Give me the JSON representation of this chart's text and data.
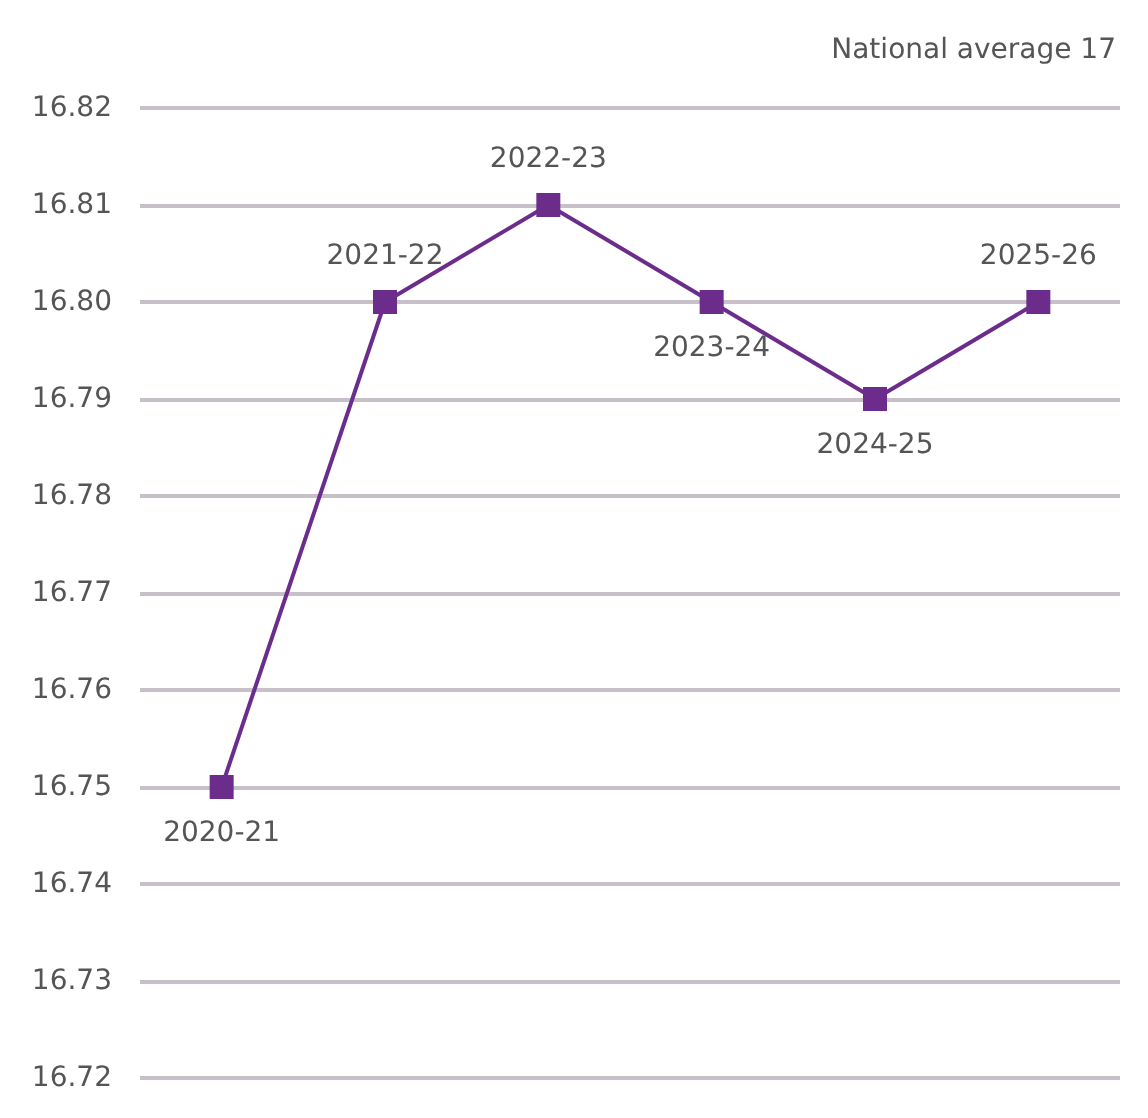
{
  "chart_data": {
    "type": "line",
    "annotations": [
      "National average 17"
    ],
    "categories": [
      "2020-21",
      "2021-22",
      "2022-23",
      "2023-24",
      "2024-25",
      "2025-26"
    ],
    "series": [
      {
        "color": "#6b2c8c",
        "values": [
          16.75,
          16.8,
          16.81,
          16.8,
          16.79,
          16.8
        ]
      }
    ],
    "ylim": [
      16.72,
      16.82
    ],
    "yticks": [
      16.72,
      16.73,
      16.74,
      16.75,
      16.76,
      16.77,
      16.78,
      16.79,
      {
        "value": 16.8,
        "label": "16.80"
      },
      16.81,
      16.82
    ],
    "grid": "y",
    "marker": "square",
    "line_style": "solid",
    "tick_labels": "y"
  }
}
